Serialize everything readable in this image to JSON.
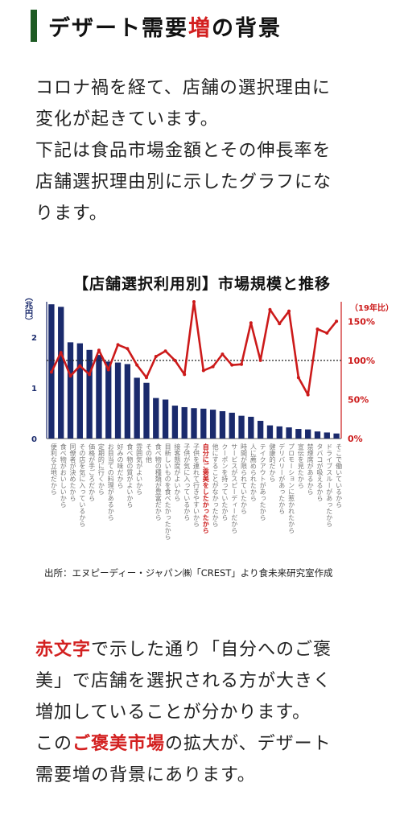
{
  "header": {
    "title_pre": "デザート需要",
    "title_highlight": "増",
    "title_post": "の背景"
  },
  "intro": {
    "line1": "コロナ禍を経て、店舗の選択理由に",
    "line2": "変化が起きています。",
    "line3": "下記は食品市場金額とその伸長率を",
    "line4": "店舗選択理由別に示したグラフにな",
    "line5": "ります。"
  },
  "chart_title": "【店舗選択利用別】市場規模と推移",
  "source": "出所：エヌピーディー・ジャパン㈱「CREST」より食未来研究室作成",
  "colors": {
    "bar": "#1a2a6c",
    "line": "#cc1a1a",
    "accent_red": "#d32020",
    "header_bar": "#1e5b24"
  },
  "chart_data": {
    "type": "bar+line",
    "left_axis_label": "（兆円）",
    "right_axis_label": "（19年比）",
    "left_ticks": [
      "0",
      "1",
      "2"
    ],
    "right_ticks": [
      "0%",
      "50%",
      "100%",
      "150%"
    ],
    "ylim_left": [
      0,
      2.7
    ],
    "ylim_right": [
      0,
      175
    ],
    "reference_line": 100,
    "categories": [
      "便利な立地だから",
      "食べ物がおいしいから",
      "同僚者が決めたから",
      "その店を気に入っているから",
      "価格が手ごろだから",
      "定期的に行くから",
      "お目当ての料理があるから",
      "好みの味だから",
      "食べ物の質がよいから",
      "雰囲気がよいから",
      "その他",
      "食べ物の種類が豊富だから",
      "目新しいものを食べたかったから",
      "接客態度がよいから",
      "子供が気に入っているから",
      "子供を連れて行きやすいから",
      "自分にご褒美をしたかったから",
      "他にすることがなかったから",
      "クーポンを持っていたから",
      "サービスがスピーディーだから",
      "時間が限られていたから",
      "人に薦められたから",
      "テイクアウトがあったから",
      "健康的だから",
      "デリバリーがあったから",
      "プロモーションに惹かれたから",
      "宣伝を見たから",
      "禁煙席があるから",
      "タバコが吸えるから",
      "ドライブスルーがあったから",
      "そこで働いているから"
    ],
    "highlight_index": 16,
    "series": [
      {
        "values": [
          2.65,
          2.6,
          1.9,
          1.88,
          1.75,
          1.65,
          1.52,
          1.5,
          1.47,
          1.2,
          1.1,
          0.8,
          0.77,
          0.65,
          0.62,
          0.6,
          0.59,
          0.57,
          0.54,
          0.51,
          0.45,
          0.43,
          0.35,
          0.26,
          0.24,
          0.22,
          0.19,
          0.18,
          0.14,
          0.12,
          0.1
        ]
      },
      {
        "values": [
          85,
          110,
          80,
          93,
          82,
          113,
          88,
          120,
          115,
          94,
          78,
          105,
          112,
          100,
          82,
          175,
          87,
          92,
          108,
          94,
          95,
          148,
          100,
          165,
          147,
          163,
          78,
          56,
          140,
          135,
          150
        ]
      }
    ]
  },
  "closing": {
    "l1_red": "赤文字",
    "l1_rest": "で示した通り「自分へのご褒",
    "l2": "美」で店舗を選択される方が大きく",
    "l3": "増加していることが分かります。",
    "l4_pre": "この",
    "l4_red": "ご褒美市場",
    "l4_post": "の拡大が、デザート",
    "l5": "需要増の背景にあります。"
  }
}
